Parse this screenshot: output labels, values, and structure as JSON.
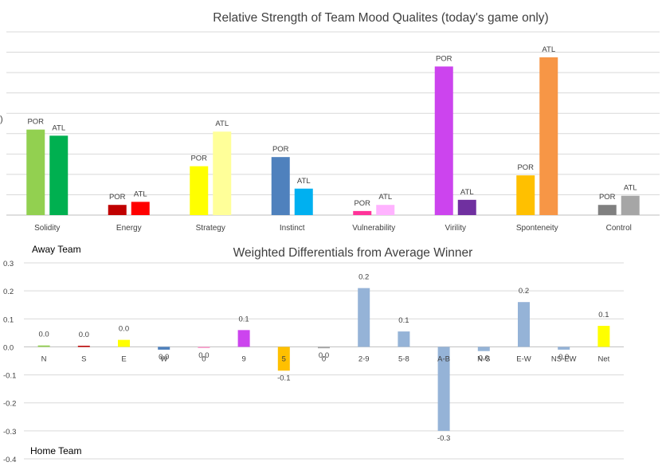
{
  "chart_data": [
    {
      "type": "bar",
      "title": "Relative Strength of Team Mood Qualites (today's game only)",
      "categories": [
        "Solidity",
        "Energy",
        "Strategy",
        "Instinct",
        "Vulnerability",
        "Virility",
        "Sponteneity",
        "Control"
      ],
      "series": [
        {
          "name": "POR",
          "values": [
            4.2,
            0.5,
            2.4,
            2.85,
            0.2,
            7.3,
            1.95,
            0.5
          ]
        },
        {
          "name": "ATL",
          "values": [
            3.9,
            0.65,
            4.1,
            1.3,
            0.5,
            0.75,
            7.75,
            0.95
          ]
        }
      ],
      "bar_colors": [
        [
          "#92d050",
          "#00b050"
        ],
        [
          "#c00000",
          "#ff0000"
        ],
        [
          "#ffff00",
          "#ffff99"
        ],
        [
          "#4f81bd",
          "#00b0f0"
        ],
        [
          "#ff3399",
          "#ffb3ff"
        ],
        [
          "#cc44ee",
          "#7030a0"
        ],
        [
          "#ffc000",
          "#f79646"
        ],
        [
          "#808080",
          "#a6a6a6"
        ]
      ],
      "ylim": [
        0,
        9
      ],
      "grid": true,
      "side_marker": ")"
    },
    {
      "type": "bar",
      "title": "Weighted Differentials from Average Winner",
      "categories": [
        "N",
        "S",
        "E",
        "W",
        "0",
        "9",
        "5",
        "0",
        "2-9",
        "5-8",
        "A-B",
        "N-S",
        "E-W",
        "NS-EW",
        "Net"
      ],
      "values": [
        0.005,
        0.004,
        0.025,
        -0.01,
        -0.003,
        0.06,
        -0.085,
        -0.005,
        0.21,
        0.055,
        -0.3,
        -0.015,
        0.16,
        -0.01,
        0.075
      ],
      "data_labels": [
        "0.0",
        "0.0",
        "0.0",
        "0.0",
        "0.0",
        "0.1",
        "-0.1",
        "0.0",
        "0.2",
        "0.1",
        "-0.3",
        "0.0",
        "0.2",
        "0.0",
        "0.1"
      ],
      "bar_colors": [
        "#92d050",
        "#c00000",
        "#ffff00",
        "#4f81bd",
        "#ff99cc",
        "#cc44ee",
        "#ffc000",
        "#a6a6a6",
        "#95b3d7",
        "#95b3d7",
        "#95b3d7",
        "#95b3d7",
        "#95b3d7",
        "#95b3d7",
        "#ffff00"
      ],
      "y_ticks": [
        "0.3",
        "0.2",
        "0.1",
        "0.0",
        "-0.1",
        "-0.2",
        "-0.3",
        "-0.4"
      ],
      "ylim": [
        -0.4,
        0.3
      ],
      "grid": true,
      "annotations": {
        "top": "Away Team",
        "bottom": "Home Team"
      }
    }
  ]
}
